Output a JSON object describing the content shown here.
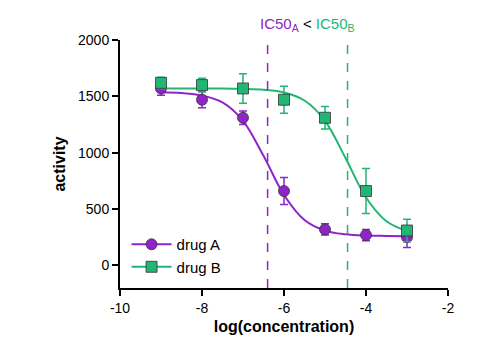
{
  "chart_data": {
    "type": "scatter",
    "x_label": "log(concentration)",
    "y_label": "activity",
    "xlim": [
      -10,
      -2
    ],
    "xticks": [
      -10,
      -8,
      -6,
      -4,
      -2
    ],
    "ylim": [
      -200,
      2000
    ],
    "yticks": [
      0,
      500,
      1000,
      1500,
      2000
    ],
    "grid": false,
    "legend": "lower left",
    "x": [
      -9,
      -8,
      -7,
      -6,
      -5,
      -4,
      -3
    ],
    "fit_x": [
      -9,
      -8.5,
      -8,
      -7.5,
      -7,
      -6.5,
      -6,
      -5.5,
      -5,
      -4.5,
      -4,
      -3.5,
      -3
    ],
    "series": [
      {
        "name": "drug A",
        "color": "#8e24c9",
        "marker": "circle",
        "values": [
          1570,
          1470,
          1310,
          660,
          320,
          270,
          250
        ],
        "error": [
          60,
          70,
          60,
          120,
          50,
          50,
          90
        ],
        "fit": [
          1537,
          1530,
          1508,
          1446,
          1283,
          973,
          625,
          403,
          309,
          276,
          265,
          262,
          260
        ],
        "ic50": -6.4
      },
      {
        "name": "drug B",
        "color": "#22b573",
        "marker": "square",
        "values": [
          1620,
          1600,
          1570,
          1470,
          1310,
          660,
          310
        ],
        "error": [
          50,
          60,
          130,
          120,
          100,
          200,
          100
        ],
        "fit": [
          1570,
          1570,
          1569,
          1569,
          1566,
          1558,
          1534,
          1463,
          1283,
          953,
          603,
          392,
          305
        ],
        "ic50": -4.45
      }
    ],
    "annotation": [
      {
        "text": "IC50",
        "sub": "A",
        "series": 0
      },
      {
        "text": "<"
      },
      {
        "text": "IC50",
        "sub": "B",
        "series": 1
      }
    ]
  }
}
